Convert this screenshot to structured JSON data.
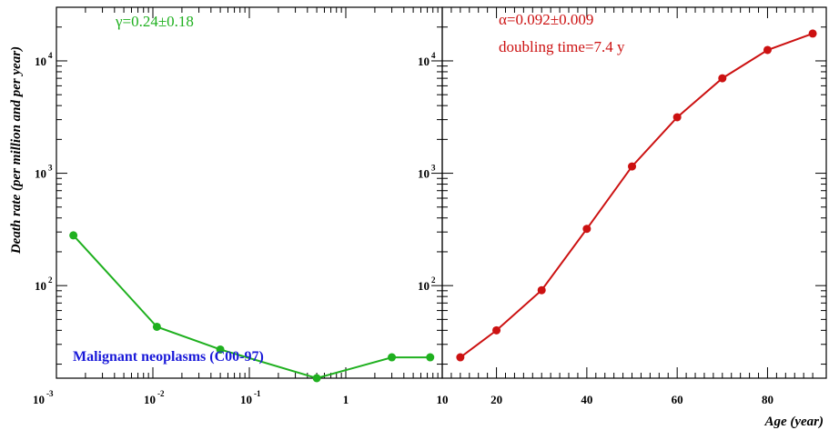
{
  "figure": {
    "ylabel": "Death rate (per million and per year)",
    "xlabel_right": "Age (year)",
    "legend_label": "Malignant neoplasms (C00-97)",
    "legend_color": "#1a1ad9"
  },
  "chart_data": [
    {
      "type": "line",
      "panel": "left",
      "xscale": "log",
      "yscale": "log",
      "xlim": [
        0.001,
        10
      ],
      "ylim": [
        15,
        30000
      ],
      "x_ticks": [
        {
          "base": "10",
          "exp": "-3"
        },
        {
          "base": "10",
          "exp": "-2"
        },
        {
          "base": "10",
          "exp": "-1"
        },
        {
          "base": "1",
          "exp": ""
        },
        {
          "base": "10",
          "exp": ""
        }
      ],
      "y_ticks": [
        {
          "base": "10",
          "exp": "2"
        },
        {
          "base": "10",
          "exp": "3"
        },
        {
          "base": "10",
          "exp": "4"
        }
      ],
      "annotation": "γ=0.24±0.18",
      "color": "#1fb01f",
      "series": [
        {
          "x": [
            0.0015,
            0.011,
            0.05,
            0.5,
            3,
            7.5
          ],
          "y": [
            280,
            43,
            27,
            15,
            23,
            23
          ]
        }
      ]
    },
    {
      "type": "line",
      "panel": "right",
      "xscale": "linear",
      "yscale": "log",
      "xlim": [
        8,
        93
      ],
      "ylim": [
        15,
        30000
      ],
      "x_ticks": [
        "20",
        "40",
        "60",
        "80"
      ],
      "y_ticks": [
        {
          "base": "10",
          "exp": "2"
        },
        {
          "base": "10",
          "exp": "3"
        },
        {
          "base": "10",
          "exp": "4"
        }
      ],
      "xlabel": "Age (year)",
      "annotation_lines": [
        "α=0.092±0.009",
        "doubling time=7.4 y"
      ],
      "color": "#cc1111",
      "series": [
        {
          "x": [
            12,
            20,
            30,
            40,
            50,
            60,
            70,
            80,
            90
          ],
          "y": [
            23,
            40,
            91,
            320,
            1150,
            3150,
            7000,
            12500,
            17500
          ]
        }
      ]
    }
  ]
}
